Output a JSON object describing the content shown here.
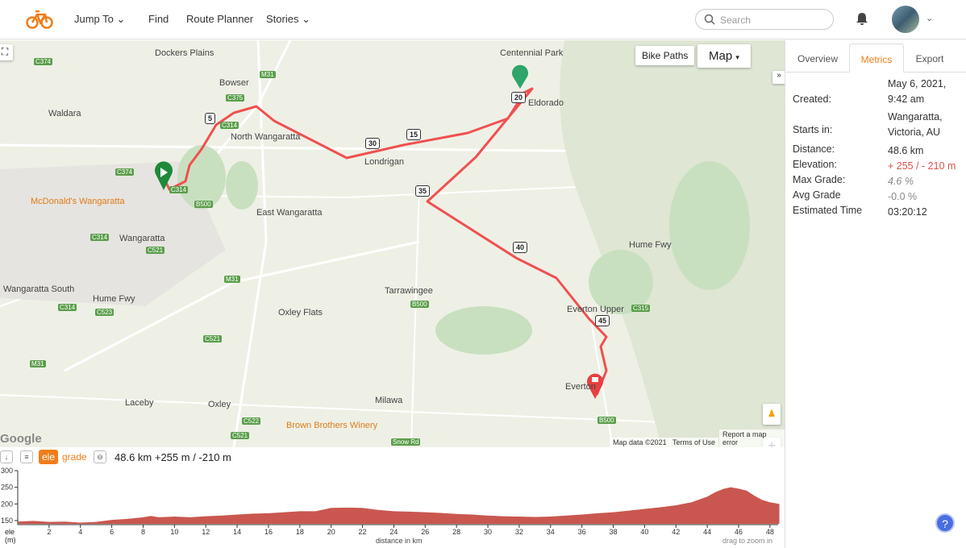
{
  "nav": {
    "items": [
      "Jump To",
      "Find",
      "Route Planner",
      "Stories"
    ],
    "search_placeholder": "Search"
  },
  "map": {
    "bike_paths": "Bike Paths",
    "map_type": "Map",
    "attribution": "Map data ©2021",
    "terms": "Terms of Use",
    "report": "Report a map error",
    "google": "Google",
    "labels": [
      "Dockers Plains",
      "Bowser",
      "Waldara",
      "North Wangaratta",
      "Londrigan",
      "East Wangaratta",
      "Wangaratta",
      "Wangaratta South",
      "Oxley Flats",
      "Tarrawingee",
      "Everton Upper",
      "Everton",
      "Laceby",
      "Oxley",
      "Milawa",
      "Eldorado",
      "Centennial Park",
      "Hume Fwy",
      "Hume Fwy"
    ],
    "pois": [
      "McDonald's Wangaratta",
      "Brown Brothers Winery"
    ],
    "road_shields": [
      "C374",
      "M31",
      "C375",
      "C314",
      "C374",
      "C314",
      "B500",
      "C314",
      "C521",
      "M31",
      "C314",
      "C523",
      "C521",
      "B500",
      "C315",
      "M31",
      "C522",
      "C521",
      "B500",
      "Snow Rd"
    ],
    "km_markers": [
      "5",
      "15",
      "20",
      "30",
      "35",
      "40",
      "45"
    ]
  },
  "profile": {
    "toggle_ele": "ele",
    "toggle_grade": "grade",
    "summary": "48.6 km +255 m / -210 m",
    "ylabel": "ele (m)",
    "xlabel": "distance in km",
    "hint": "drag to zoom in"
  },
  "chart_data": {
    "type": "area",
    "xlabel": "distance in km",
    "ylabel": "ele (m)",
    "xlim": [
      0,
      48.6
    ],
    "ylim": [
      140,
      300
    ],
    "yticks": [
      150,
      200,
      250,
      300
    ],
    "xticks": [
      2,
      4,
      6,
      8,
      10,
      12,
      14,
      16,
      18,
      20,
      22,
      24,
      26,
      28,
      30,
      32,
      34,
      36,
      38,
      40,
      42,
      44,
      46,
      48
    ],
    "x": [
      0,
      1,
      2,
      3,
      4,
      5,
      6,
      7,
      8,
      8.5,
      9,
      10,
      11,
      12,
      13,
      14,
      15,
      16,
      17,
      18,
      19,
      20,
      21,
      22,
      23,
      24,
      25,
      26,
      27,
      28,
      29,
      30,
      31,
      32,
      33,
      34,
      35,
      36,
      37,
      38,
      39,
      40,
      41,
      42,
      43,
      44,
      44.5,
      45,
      45.5,
      46,
      46.5,
      47,
      47.5,
      48,
      48.6
    ],
    "values": [
      147,
      149,
      146,
      147,
      144,
      146,
      152,
      155,
      160,
      164,
      160,
      162,
      160,
      163,
      165,
      168,
      171,
      172,
      175,
      178,
      178,
      188,
      189,
      188,
      182,
      178,
      177,
      175,
      173,
      170,
      168,
      165,
      163,
      162,
      161,
      162,
      165,
      168,
      172,
      175,
      180,
      185,
      190,
      196,
      205,
      222,
      235,
      245,
      250,
      246,
      240,
      225,
      212,
      205,
      200
    ],
    "series_color": "#c9574f"
  },
  "side": {
    "tabs": [
      "Overview",
      "Metrics",
      "Export"
    ],
    "metrics": [
      {
        "label": "Created:",
        "value": "May 6, 2021, 9:42 am"
      },
      {
        "label": "Starts in:",
        "value": "Wangaratta, Victoria, AU"
      },
      {
        "label": "Distance:",
        "value": "48.6 km"
      },
      {
        "label": "Elevation:",
        "value": "+ 255 / - 210 m"
      },
      {
        "label": "Max Grade:",
        "value": "4.6 %"
      },
      {
        "label": "Avg Grade",
        "value": "-0.0 %"
      },
      {
        "label": "Estimated Time",
        "value": "03:20:12"
      }
    ]
  },
  "colors": {
    "accent": "#f07d1a",
    "route": "#f05050",
    "elevation": "#c9574f",
    "start": "#1e8a3a"
  }
}
